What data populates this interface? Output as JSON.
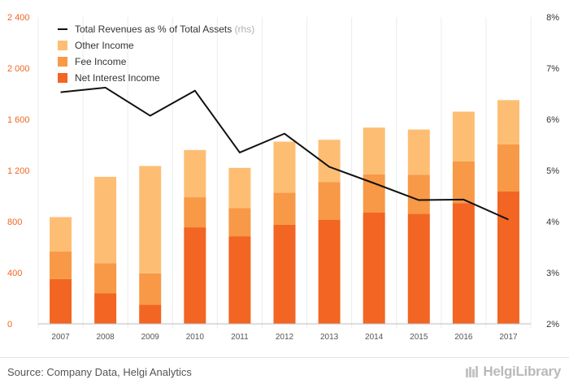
{
  "chart_data": {
    "type": "bar",
    "stacked": true,
    "categories": [
      "2007",
      "2008",
      "2009",
      "2010",
      "2011",
      "2012",
      "2013",
      "2014",
      "2015",
      "2016",
      "2017"
    ],
    "series": [
      {
        "name": "Net Interest Income",
        "color": "#f26522",
        "values": [
          350,
          240,
          150,
          755,
          685,
          775,
          815,
          870,
          860,
          945,
          1035
        ]
      },
      {
        "name": "Fee Income",
        "color": "#f79946",
        "values": [
          215,
          235,
          245,
          235,
          220,
          250,
          295,
          300,
          305,
          325,
          370
        ]
      },
      {
        "name": "Other Income",
        "color": "#fdbe74",
        "values": [
          270,
          675,
          840,
          370,
          315,
          400,
          330,
          365,
          355,
          390,
          345
        ]
      }
    ],
    "line_series": {
      "name": "Total Revenues as % of Total Assets",
      "name_suffix": "(rhs)",
      "color": "#111111",
      "axis": "right",
      "values": [
        6.53,
        6.62,
        6.07,
        6.56,
        5.35,
        5.72,
        5.07,
        4.75,
        4.42,
        4.43,
        4.04
      ]
    },
    "y_left": {
      "min": 0,
      "max": 2400,
      "ticks": [
        0,
        400,
        800,
        1200,
        1600,
        2000,
        2400
      ],
      "tick_labels": [
        "0",
        "400",
        "800",
        "1 200",
        "1 600",
        "2 000",
        "2 400"
      ],
      "color": "#f26522"
    },
    "y_right": {
      "min": 2,
      "max": 8,
      "ticks": [
        2,
        3,
        4,
        5,
        6,
        7,
        8
      ],
      "tick_labels": [
        "2%",
        "3%",
        "4%",
        "5%",
        "6%",
        "7%",
        "8%"
      ]
    },
    "legend": {
      "position": "top-left"
    },
    "grid": true
  },
  "footer": {
    "source": "Source: Company Data, Helgi Analytics",
    "logo_text": "HelgiLibrary"
  }
}
